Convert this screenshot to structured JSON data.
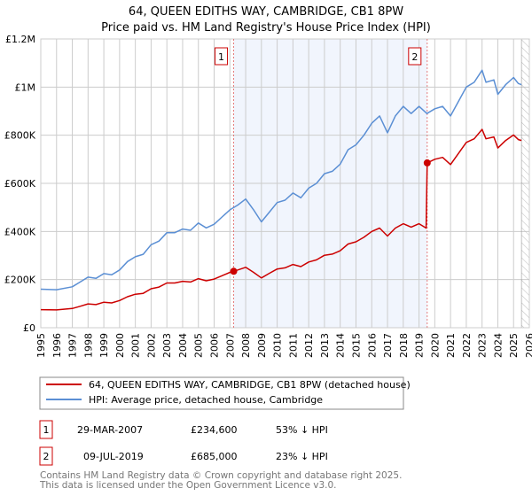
{
  "chart_data": {
    "type": "line",
    "title": "64, QUEEN EDITHS WAY, CAMBRIDGE, CB1 8PW",
    "subtitle": "Price paid vs. HM Land Registry's House Price Index (HPI)",
    "xlim": [
      1995,
      2026
    ],
    "ylim": [
      0,
      1200000
    ],
    "x_ticks": [
      1995,
      1996,
      1997,
      1998,
      1999,
      2000,
      2001,
      2002,
      2003,
      2004,
      2005,
      2006,
      2007,
      2008,
      2009,
      2010,
      2011,
      2012,
      2013,
      2014,
      2015,
      2016,
      2017,
      2018,
      2019,
      2020,
      2021,
      2022,
      2023,
      2024,
      2025,
      2026
    ],
    "y_ticks": [
      {
        "value": 0,
        "label": "£0"
      },
      {
        "value": 200000,
        "label": "£200K"
      },
      {
        "value": 400000,
        "label": "£400K"
      },
      {
        "value": 600000,
        "label": "£600K"
      },
      {
        "value": 800000,
        "label": "£800K"
      },
      {
        "value": 1000000,
        "label": "£1M"
      },
      {
        "value": 1200000,
        "label": "£1.2M"
      }
    ],
    "grid": true,
    "shaded_range": [
      2007.24,
      2019.52
    ],
    "forecast_hatch_from": 2025.5,
    "series": [
      {
        "name": "64, QUEEN EDITHS WAY, CAMBRIDGE, CB1 8PW (detached house)",
        "color": "#cc0000",
        "points": [
          [
            1995,
            75
          ],
          [
            1996,
            74
          ],
          [
            1997,
            80
          ],
          [
            1997.5,
            89
          ],
          [
            1998,
            99
          ],
          [
            1998.5,
            96
          ],
          [
            1999,
            106
          ],
          [
            1999.5,
            103
          ],
          [
            2000,
            113
          ],
          [
            2000.5,
            129
          ],
          [
            2001,
            139
          ],
          [
            2001.5,
            143
          ],
          [
            2002,
            162
          ],
          [
            2002.5,
            169
          ],
          [
            2003,
            186
          ],
          [
            2003.5,
            186
          ],
          [
            2004,
            193
          ],
          [
            2004.5,
            190
          ],
          [
            2005,
            204
          ],
          [
            2005.5,
            195
          ],
          [
            2006,
            202
          ],
          [
            2006.5,
            216
          ],
          [
            2007,
            230
          ],
          [
            2007.24,
            234.6
          ],
          [
            2007.5,
            240
          ],
          [
            2008,
            251
          ],
          [
            2008.5,
            230
          ],
          [
            2009,
            207
          ],
          [
            2009.5,
            226
          ],
          [
            2010,
            244
          ],
          [
            2010.5,
            249
          ],
          [
            2011,
            263
          ],
          [
            2011.5,
            254
          ],
          [
            2012,
            273
          ],
          [
            2012.5,
            282
          ],
          [
            2013,
            301
          ],
          [
            2013.5,
            306
          ],
          [
            2014,
            320
          ],
          [
            2014.5,
            348
          ],
          [
            2015,
            357
          ],
          [
            2015.5,
            376
          ],
          [
            2016,
            400
          ],
          [
            2016.5,
            414
          ],
          [
            2017,
            381
          ],
          [
            2017.5,
            414
          ],
          [
            2018,
            432
          ],
          [
            2018.5,
            418
          ],
          [
            2019,
            432
          ],
          [
            2019.45,
            414
          ],
          [
            2019.52,
            685
          ],
          [
            2020,
            700
          ],
          [
            2020.5,
            708
          ],
          [
            2021,
            678
          ],
          [
            2021.5,
            724
          ],
          [
            2022,
            770
          ],
          [
            2022.5,
            785
          ],
          [
            2023,
            824
          ],
          [
            2023.25,
            785
          ],
          [
            2023.75,
            793
          ],
          [
            2024,
            747
          ],
          [
            2024.5,
            778
          ],
          [
            2025,
            801
          ],
          [
            2025.3,
            782
          ],
          [
            2025.5,
            778
          ]
        ]
      },
      {
        "name": "HPI: Average price, detached house, Cambridge",
        "color": "#5b8fd4",
        "points": [
          [
            1995,
            160
          ],
          [
            1996,
            158
          ],
          [
            1997,
            170
          ],
          [
            1997.5,
            190
          ],
          [
            1998,
            210
          ],
          [
            1998.5,
            205
          ],
          [
            1999,
            225
          ],
          [
            1999.5,
            220
          ],
          [
            2000,
            240
          ],
          [
            2000.5,
            275
          ],
          [
            2001,
            295
          ],
          [
            2001.5,
            305
          ],
          [
            2002,
            345
          ],
          [
            2002.5,
            360
          ],
          [
            2003,
            395
          ],
          [
            2003.5,
            395
          ],
          [
            2004,
            410
          ],
          [
            2004.5,
            405
          ],
          [
            2005,
            435
          ],
          [
            2005.5,
            415
          ],
          [
            2006,
            430
          ],
          [
            2006.5,
            460
          ],
          [
            2007,
            490
          ],
          [
            2007.5,
            510
          ],
          [
            2008,
            535
          ],
          [
            2008.5,
            490
          ],
          [
            2009,
            440
          ],
          [
            2009.5,
            480
          ],
          [
            2010,
            520
          ],
          [
            2010.5,
            530
          ],
          [
            2011,
            560
          ],
          [
            2011.5,
            540
          ],
          [
            2012,
            580
          ],
          [
            2012.5,
            600
          ],
          [
            2013,
            640
          ],
          [
            2013.5,
            650
          ],
          [
            2014,
            680
          ],
          [
            2014.5,
            740
          ],
          [
            2015,
            760
          ],
          [
            2015.5,
            800
          ],
          [
            2016,
            850
          ],
          [
            2016.5,
            880
          ],
          [
            2017,
            810
          ],
          [
            2017.5,
            880
          ],
          [
            2018,
            920
          ],
          [
            2018.5,
            890
          ],
          [
            2019,
            920
          ],
          [
            2019.5,
            890
          ],
          [
            2020,
            910
          ],
          [
            2020.5,
            920
          ],
          [
            2021,
            880
          ],
          [
            2021.5,
            940
          ],
          [
            2022,
            1000
          ],
          [
            2022.5,
            1020
          ],
          [
            2023,
            1070
          ],
          [
            2023.25,
            1020
          ],
          [
            2023.75,
            1030
          ],
          [
            2024,
            970
          ],
          [
            2024.5,
            1010
          ],
          [
            2025,
            1040
          ],
          [
            2025.3,
            1015
          ],
          [
            2025.5,
            1010
          ]
        ]
      }
    ],
    "point_units": "thousands GBP",
    "annotations": [
      {
        "label": "1",
        "x": 2007.24,
        "y": 234.6
      },
      {
        "label": "2",
        "x": 2019.52,
        "y": 685
      }
    ]
  },
  "sales": [
    {
      "num": "1",
      "date": "29-MAR-2007",
      "price": "£234,600",
      "hpi": "53% ↓ HPI"
    },
    {
      "num": "2",
      "date": "09-JUL-2019",
      "price": "£685,000",
      "hpi": "23% ↓ HPI"
    }
  ],
  "footer": {
    "line1": "Contains HM Land Registry data © Crown copyright and database right 2025.",
    "line2": "This data is licensed under the Open Government Licence v3.0."
  }
}
